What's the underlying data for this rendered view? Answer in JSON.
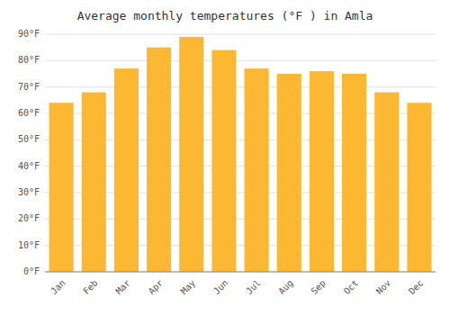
{
  "chart_data": {
    "type": "bar",
    "title": "Average monthly temperatures (°F ) in Amla",
    "categories": [
      "Jan",
      "Feb",
      "Mar",
      "Apr",
      "May",
      "Jun",
      "Jul",
      "Aug",
      "Sep",
      "Oct",
      "Nov",
      "Dec"
    ],
    "values": [
      64,
      68,
      77,
      85,
      89,
      84,
      77,
      75,
      76,
      75,
      68,
      64
    ],
    "color": "#FDB833",
    "ylim": [
      0,
      90
    ],
    "yticks": [
      {
        "value": 0,
        "label": "0°F"
      },
      {
        "value": 10,
        "label": "10°F"
      },
      {
        "value": 20,
        "label": "20°F"
      },
      {
        "value": 30,
        "label": "30°F"
      },
      {
        "value": 40,
        "label": "40°F"
      },
      {
        "value": 50,
        "label": "50°F"
      },
      {
        "value": 60,
        "label": "60°F"
      },
      {
        "value": 70,
        "label": "70°F"
      },
      {
        "value": 80,
        "label": "80°F"
      },
      {
        "value": 90,
        "label": "90°F"
      }
    ],
    "grid": true
  }
}
